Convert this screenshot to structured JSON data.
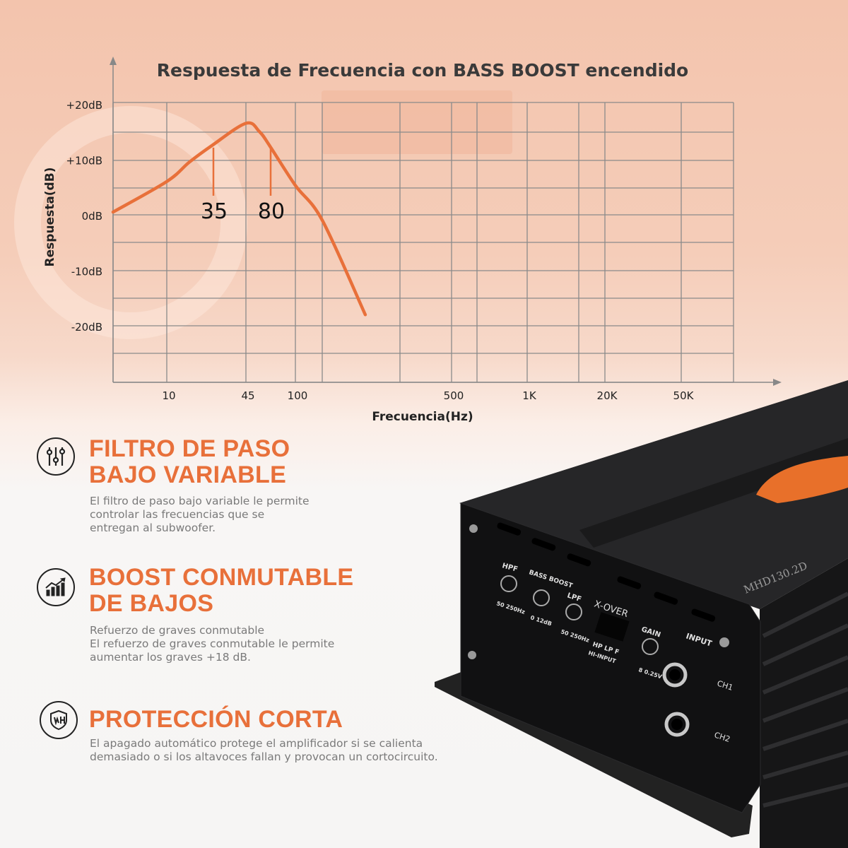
{
  "chart_data": {
    "type": "line",
    "title": "Respuesta de Frecuencia con BASS BOOST encendido",
    "xlabel": "Frecuencia(Hz)",
    "ylabel": "Respuesta(dB)",
    "x_tick_labels": [
      "10",
      "45",
      "100",
      "500",
      "1K",
      "20K",
      "50K"
    ],
    "x_ticks": [
      10,
      45,
      100,
      500,
      1000,
      20000,
      50000
    ],
    "y_tick_labels": [
      "+20dB",
      "+10dB",
      "0dB",
      "-10dB",
      "-20dB"
    ],
    "y_ticks": [
      20,
      10,
      0,
      -10,
      -20
    ],
    "ylim": [
      -30,
      20
    ],
    "grid": true,
    "series": [
      {
        "color": "#e8703a",
        "points": [
          [
            0,
            0.5
          ],
          [
            10,
            6
          ],
          [
            20,
            9.5
          ],
          [
            30,
            12.5
          ],
          [
            45,
            16.5
          ],
          [
            60,
            15
          ],
          [
            72,
            12.3
          ],
          [
            100,
            5.3
          ],
          [
            169,
            -1
          ],
          [
            279,
            -18
          ]
        ]
      }
    ],
    "annotations": [
      {
        "label": "35",
        "x": 35,
        "y": 12.5
      },
      {
        "label": "80",
        "x": 80,
        "y": 12.3
      }
    ]
  },
  "features": [
    {
      "icon": "sliders-icon",
      "title_lines": [
        "FILTRO DE PASO",
        "BAJO VARIABLE"
      ],
      "desc_lines": [
        "El filtro de paso bajo variable le permite",
        "controlar las frecuencias que se",
        "entregan al subwoofer."
      ]
    },
    {
      "icon": "growth-chart-icon",
      "title_lines": [
        "BOOST CONMUTABLE",
        "DE BAJOS"
      ],
      "desc_lines": [
        "Refuerzo de graves conmutable",
        "El refuerzo de graves conmutable le permite",
        "aumentar los graves +18 dB."
      ]
    },
    {
      "icon": "shield-icon",
      "title_lines": [
        "PROTECCIÓN CORTA"
      ],
      "desc_lines": [
        "El apagado automático protege el amplificador si se calienta",
        "demasiado o si los altavoces fallan y provocan un cortocircuito."
      ]
    }
  ],
  "product": {
    "model": "MHD130.2D",
    "logo_text": "GAIN",
    "panel_labels": {
      "hpf": "HPF",
      "hpf_range": "50  250Hz",
      "bass_boost": "BASS BOOST",
      "bass_range": "0  12dB",
      "lpf": "LPF",
      "lpf_range": "50  250Hz",
      "xover": "X-OVER",
      "xover_opts": "HP LP F",
      "hi_input": "HI-INPUT",
      "gain": "GAIN",
      "gain_range": "8  0.25V",
      "input": "INPUT",
      "ch1": "CH1",
      "ch2": "CH2"
    },
    "colors": {
      "accent": "#e8703a",
      "body": "#1c1c1e"
    }
  }
}
